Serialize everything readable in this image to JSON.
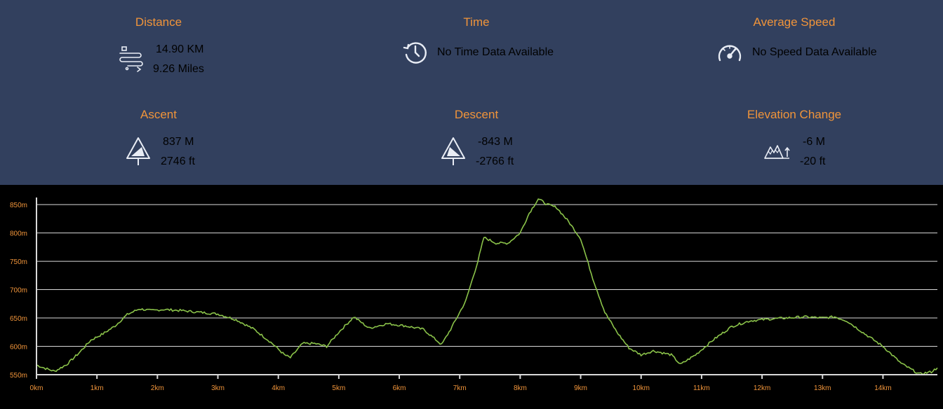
{
  "stats": {
    "distance": {
      "title": "Distance",
      "line1": "14.90 KM",
      "line2": "9.26 Miles",
      "icon": "route-icon"
    },
    "time": {
      "title": "Time",
      "line1": "No Time Data Available",
      "icon": "timer-icon"
    },
    "speed": {
      "title": "Average Speed",
      "line1": "No Speed Data Available",
      "icon": "speedometer-icon"
    },
    "ascent": {
      "title": "Ascent",
      "line1": "837 M",
      "line2": "2746 ft",
      "icon": "ascent-sign-icon"
    },
    "descent": {
      "title": "Descent",
      "line1": "-843 M",
      "line2": "-2766 ft",
      "icon": "descent-sign-icon"
    },
    "elevation": {
      "title": "Elevation Change",
      "line1": "-6 M",
      "line2": "-20 ft",
      "icon": "mountains-icon"
    }
  },
  "colors": {
    "panel_bg": "#32405e",
    "chart_bg": "#000000",
    "accent": "#f0943a",
    "line": "#8bc34a",
    "grid": "#d9d9d9"
  },
  "chart_data": {
    "type": "area",
    "title": "",
    "xlabel": "",
    "ylabel": "",
    "xlim": [
      0,
      14.9
    ],
    "ylim": [
      550,
      860
    ],
    "x_ticks": [
      "0km",
      "1km",
      "2km",
      "3km",
      "4km",
      "5km",
      "6km",
      "7km",
      "8km",
      "9km",
      "10km",
      "11km",
      "12km",
      "13km",
      "14km"
    ],
    "y_ticks": [
      "550m",
      "600m",
      "650m",
      "700m",
      "750m",
      "800m",
      "850m"
    ],
    "grid": true,
    "series": [
      {
        "x": [
          0,
          0.15,
          0.3,
          0.5,
          0.7,
          0.9,
          1.1,
          1.3,
          1.5,
          1.7,
          1.9,
          2.1,
          2.4,
          2.7,
          3.0,
          3.3,
          3.6,
          3.9,
          4.1,
          4.2,
          4.4,
          4.6,
          4.8,
          5.0,
          5.25,
          5.5,
          5.8,
          6.1,
          6.4,
          6.7,
          6.85,
          7.1,
          7.3,
          7.4,
          7.6,
          7.8,
          8.0,
          8.15,
          8.3,
          8.45,
          8.6,
          8.8,
          9.0,
          9.2,
          9.4,
          9.6,
          9.8,
          10.0,
          10.2,
          10.5,
          10.65,
          10.9,
          11.2,
          11.5,
          11.8,
          12.1,
          12.4,
          12.7,
          13.0,
          13.2,
          13.4,
          13.7,
          14.0,
          14.3,
          14.6,
          14.8,
          14.9
        ],
        "y": [
          567,
          561,
          556,
          568,
          588,
          611,
          622,
          636,
          656,
          666,
          663,
          665,
          663,
          660,
          657,
          647,
          630,
          605,
          585,
          580,
          605,
          605,
          600,
          625,
          652,
          632,
          640,
          636,
          630,
          603,
          630,
          680,
          750,
          792,
          782,
          782,
          800,
          835,
          860,
          850,
          845,
          820,
          790,
          720,
          660,
          625,
          597,
          585,
          592,
          585,
          568,
          585,
          612,
          635,
          645,
          648,
          650,
          652,
          650,
          652,
          645,
          622,
          600,
          570,
          551,
          555,
          562
        ]
      }
    ]
  }
}
